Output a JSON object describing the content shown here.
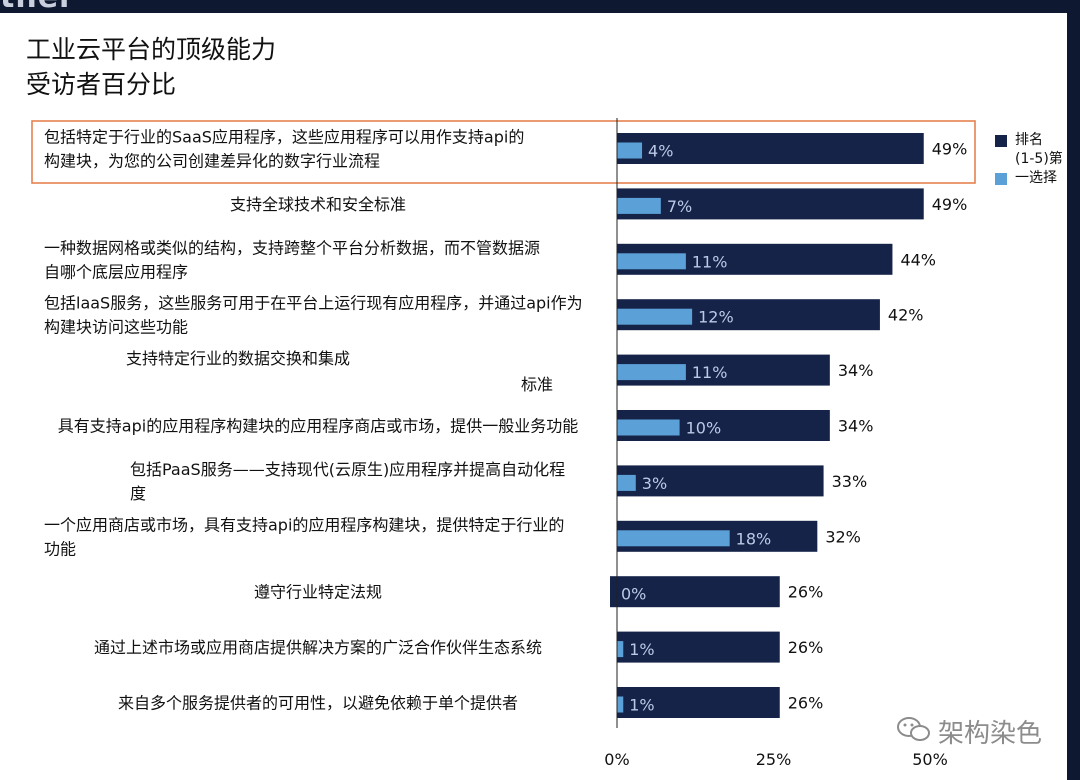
{
  "header": {
    "brand": "tner"
  },
  "title_line1": "工业云平台的顶级能力",
  "title_line2": "受访者百分比",
  "legend": {
    "items": [
      {
        "label_lines": [
          "排名",
          "(1-5)第"
        ],
        "color": "#162349"
      },
      {
        "label_lines": [
          "一选择"
        ],
        "color": "#5ba1d8"
      }
    ]
  },
  "colors": {
    "rank_bar": "#162349",
    "first_bar": "#5ba1d8",
    "highlight_border": "#e6824f",
    "axis": "#222222"
  },
  "watermark": "架构染色",
  "chart_data": {
    "type": "bar",
    "orientation": "horizontal",
    "xlim": [
      0,
      50
    ],
    "x_ticks": [
      "0%",
      "25%",
      "50%"
    ],
    "categories": [
      [
        "包括特定于行业的SaaS应用程序，这些应用程序可以用作支持api的",
        "构建块，为您的公司创建差异化的数字行业流程"
      ],
      [
        "支持全球技术和安全标准"
      ],
      [
        "一种数据网格或类似的结构，支持跨整个平台分析数据，而不管数据源",
        "自哪个底层应用程序"
      ],
      [
        "包括laaS服务，这些服务可用于在平台上运行现有应用程序，并通过api作为",
        "构建块访问这些功能"
      ],
      [
        "支持特定行业的数据交换和集成",
        "标准"
      ],
      [
        "具有支持api的应用程序构建块的应用程序商店或市场，提供一般业务功能"
      ],
      [
        "包括PaaS服务——支持现代(云原生)应用程序并提高自动化程",
        "度"
      ],
      [
        "一个应用商店或市场，具有支持api的应用程序构建块，提供特定于行业的",
        "功能"
      ],
      [
        "遵守行业特定法规"
      ],
      [
        "通过上述市场或应用商店提供解决方案的广泛合作伙伴生态系统"
      ],
      [
        "来自多个服务提供者的可用性，以避免依赖于单个提供者"
      ]
    ],
    "series": [
      {
        "name": "排名(1-5)",
        "values": [
          49,
          49,
          44,
          42,
          34,
          34,
          33,
          32,
          26,
          26,
          26
        ],
        "labels": [
          "49%",
          "49%",
          "44%",
          "42%",
          "34%",
          "34%",
          "33%",
          "32%",
          "26%",
          "26%",
          "26%"
        ]
      },
      {
        "name": "第一选择",
        "values": [
          4,
          7,
          11,
          12,
          11,
          10,
          3,
          18,
          0,
          1,
          1
        ],
        "labels": [
          "4%",
          "7%",
          "11%",
          "12%",
          "11%",
          "10%",
          "3%",
          "18%",
          "0%",
          "1%",
          "1%"
        ]
      }
    ],
    "highlighted_category": 0
  }
}
